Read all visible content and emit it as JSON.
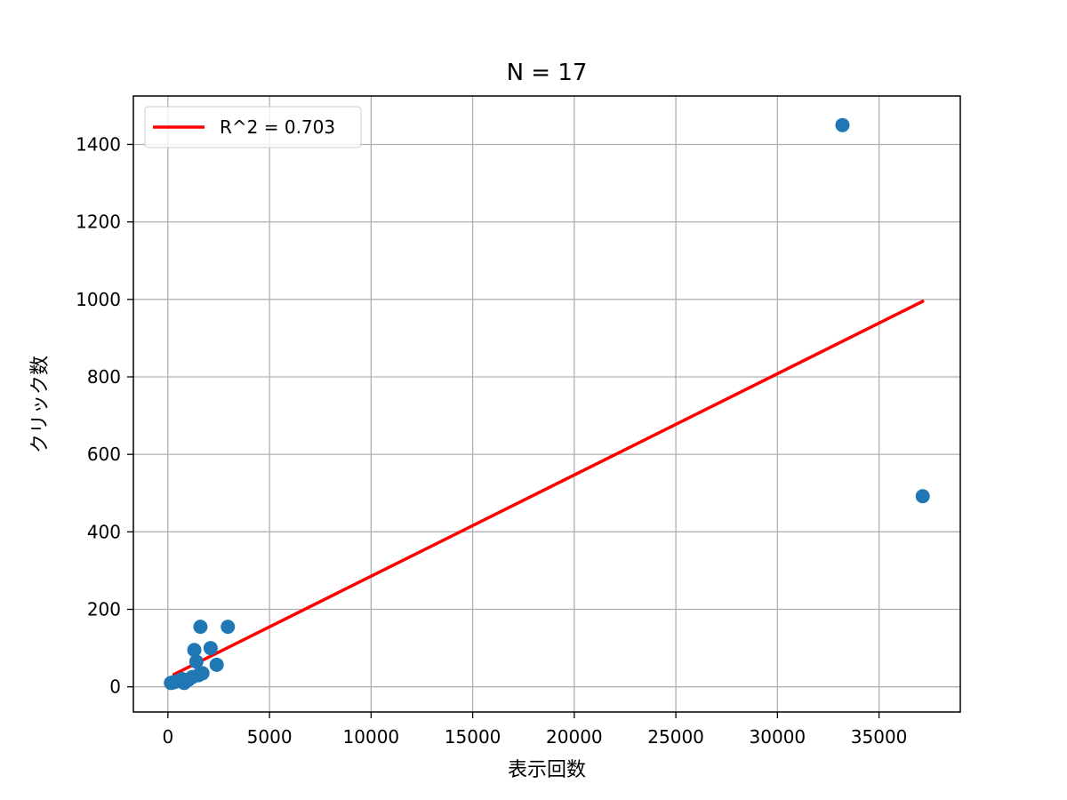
{
  "chart_data": {
    "type": "scatter",
    "title": "N = 17",
    "xlabel": "表示回数",
    "ylabel": "クリック数",
    "xlim": [
      -1700,
      39000
    ],
    "ylim": [
      -65,
      1525
    ],
    "xticks": [
      0,
      5000,
      10000,
      15000,
      20000,
      25000,
      30000,
      35000
    ],
    "yticks": [
      0,
      200,
      400,
      600,
      800,
      1000,
      1200,
      1400
    ],
    "grid": true,
    "legend_position": "top-left",
    "colors": {
      "points": "#1f77b4",
      "fit_line": "#ff0000",
      "grid": "#b0b0b0"
    },
    "series": [
      {
        "type": "scatter",
        "points": [
          {
            "x": 150,
            "y": 10
          },
          {
            "x": 300,
            "y": 12
          },
          {
            "x": 500,
            "y": 15
          },
          {
            "x": 800,
            "y": 10
          },
          {
            "x": 1000,
            "y": 18
          },
          {
            "x": 1300,
            "y": 95
          },
          {
            "x": 1400,
            "y": 65
          },
          {
            "x": 1500,
            "y": 30
          },
          {
            "x": 1600,
            "y": 155
          },
          {
            "x": 1700,
            "y": 35
          },
          {
            "x": 2100,
            "y": 100
          },
          {
            "x": 2400,
            "y": 57
          },
          {
            "x": 2950,
            "y": 155
          },
          {
            "x": 700,
            "y": 20
          },
          {
            "x": 1200,
            "y": 25
          },
          {
            "x": 33200,
            "y": 1450
          },
          {
            "x": 37150,
            "y": 492
          }
        ]
      },
      {
        "name": "R^2 = 0.703",
        "type": "line",
        "points": [
          {
            "x": 300,
            "y": 32
          },
          {
            "x": 37150,
            "y": 995
          }
        ]
      }
    ]
  }
}
